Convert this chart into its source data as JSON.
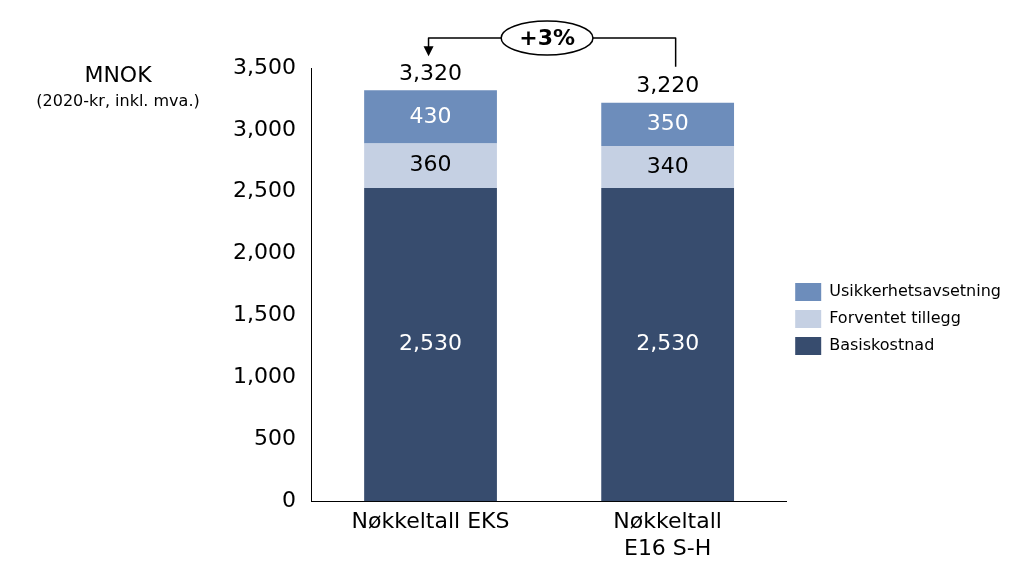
{
  "chart_data": {
    "type": "bar",
    "stacked": true,
    "ylabel": "MNOK",
    "annotations": [
      "(2020-kr, inkl. mva.)",
      "+3%"
    ],
    "categories": [
      "Nøkkeltall EKS",
      "Nøkkeltall E16 S-H"
    ],
    "series": [
      {
        "name": "Basiskostnad",
        "color": "#374c6e",
        "values": [
          2530,
          2530
        ],
        "value_labels": [
          "2,530",
          "2,530"
        ]
      },
      {
        "name": "Forventet tillegg",
        "color": "#c5d0e3",
        "values": [
          360,
          340
        ],
        "value_labels": [
          "360",
          "340"
        ]
      },
      {
        "name": "Usikkerhetsavsetning",
        "color": "#6d8dbb",
        "values": [
          430,
          350
        ],
        "value_labels": [
          "430",
          "350"
        ]
      }
    ],
    "totals": [
      "3,320",
      "3,220"
    ],
    "ylim": [
      0,
      3500
    ],
    "yticks": [
      {
        "value": 0,
        "label": "0"
      },
      {
        "value": 500,
        "label": "500"
      },
      {
        "value": 1000,
        "label": "1,000"
      },
      {
        "value": 1500,
        "label": "1,500"
      },
      {
        "value": 2000,
        "label": "2,000"
      },
      {
        "value": 2500,
        "label": "2,500"
      },
      {
        "value": 3000,
        "label": "3,000"
      },
      {
        "value": 3500,
        "label": "3,500"
      }
    ],
    "grid": false,
    "legend": "right"
  }
}
